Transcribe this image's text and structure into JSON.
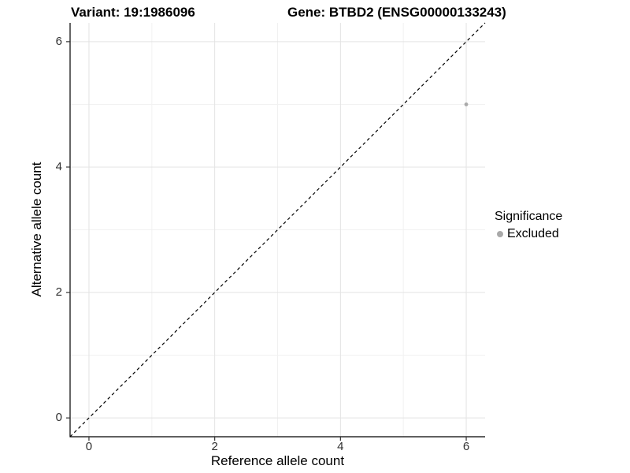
{
  "figure": {
    "title_left": "Variant: 19:1986096",
    "title_right": "Gene: BTBD2 (ENSG00000133243)"
  },
  "axes": {
    "x_label": "Reference allele count",
    "y_label": "Alternative allele count"
  },
  "legend": {
    "title": "Significance",
    "items": [
      {
        "label": "Excluded",
        "color": "#a9a9a9",
        "shape": "circle"
      }
    ]
  },
  "chart_data": {
    "type": "scatter",
    "title": "Variant: 19:1986096 | Gene: BTBD2 (ENSG00000133243)",
    "xlabel": "Reference allele count",
    "ylabel": "Alternative allele count",
    "xlim": [
      -0.3,
      6.3
    ],
    "ylim": [
      -0.3,
      6.3
    ],
    "x_ticks": [
      0,
      2,
      4,
      6
    ],
    "y_ticks": [
      0,
      2,
      4,
      6
    ],
    "grid": "major-and-minor",
    "legend_position": "right",
    "series": [
      {
        "name": "Excluded",
        "color": "#a9a9a9",
        "marker": "circle",
        "points": [
          {
            "x": 6,
            "y": 5
          }
        ]
      }
    ],
    "reference_line": {
      "slope": 1,
      "intercept": 0,
      "style": "dashed",
      "color": "#000000"
    }
  },
  "colors": {
    "grid_major": "#e3e3e3",
    "grid_minor": "#f1f1f1",
    "axis_line": "#000000",
    "tick_mark": "#333333",
    "tick_text": "#303030"
  }
}
